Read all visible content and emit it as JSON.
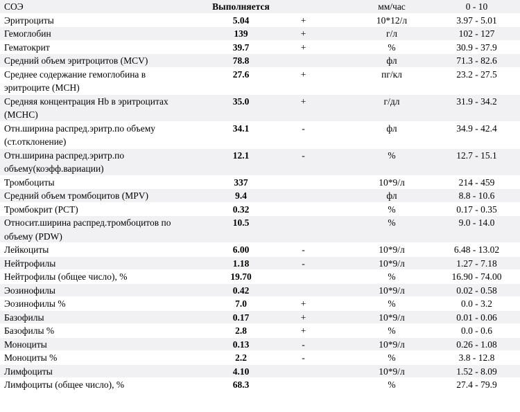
{
  "header": {
    "name": "СОЭ",
    "value": "Выполняется",
    "flag": "",
    "unit": "мм/час",
    "ref": "0 - 10"
  },
  "rows": [
    {
      "name": "Эритроциты",
      "value": "5.04",
      "flag": "+",
      "unit": "10*12/л",
      "ref": "3.97 - 5.01"
    },
    {
      "name": "Гемоглобин",
      "value": "139",
      "flag": "+",
      "unit": "г/л",
      "ref": "102 - 127"
    },
    {
      "name": "Гематокрит",
      "value": "39.7",
      "flag": "+",
      "unit": "%",
      "ref": "30.9 - 37.9"
    },
    {
      "name": "Средний объем эритроцитов (MCV)",
      "value": "78.8",
      "flag": "",
      "unit": "фл",
      "ref": "71.3 - 82.6"
    },
    {
      "name": "Среднее содержание гемоглобина в эритроците (MCH)",
      "value": "27.6",
      "flag": "+",
      "unit": "пг/кл",
      "ref": "23.2 - 27.5"
    },
    {
      "name": "Средняя концентрация Hb в эритроцитах (MCHC)",
      "value": "35.0",
      "flag": "+",
      "unit": "г/дл",
      "ref": "31.9 - 34.2"
    },
    {
      "name": "Отн.ширина распред.эритр.по объему (ст.отклонение)",
      "value": "34.1",
      "flag": "-",
      "unit": "фл",
      "ref": "34.9 - 42.4"
    },
    {
      "name": "Отн.ширина распред.эритр.по объему(коэфф.вариации)",
      "value": "12.1",
      "flag": "-",
      "unit": "%",
      "ref": "12.7 - 15.1"
    },
    {
      "name": "Тромбоциты",
      "value": "337",
      "flag": "",
      "unit": "10*9/л",
      "ref": "214 - 459"
    },
    {
      "name": "Средний объем тромбоцитов (MPV)",
      "value": "9.4",
      "flag": "",
      "unit": "фл",
      "ref": "8.8 - 10.6"
    },
    {
      "name": "Тромбокрит (PCT)",
      "value": "0.32",
      "flag": "",
      "unit": "%",
      "ref": "0.17 - 0.35"
    },
    {
      "name": "Относит.ширина распред.тромбоцитов по объему (PDW)",
      "value": "10.5",
      "flag": "",
      "unit": "%",
      "ref": "9.0 - 14.0"
    },
    {
      "name": "Лейкоциты",
      "value": "6.00",
      "flag": "-",
      "unit": "10*9/л",
      "ref": "6.48 - 13.02"
    },
    {
      "name": "Нейтрофилы",
      "value": "1.18",
      "flag": "-",
      "unit": "10*9/л",
      "ref": "1.27 - 7.18"
    },
    {
      "name": "Нейтрофилы (общее число), %",
      "value": "19.70",
      "flag": "",
      "unit": "%",
      "ref": "16.90 - 74.00"
    },
    {
      "name": "Эозинофилы",
      "value": "0.42",
      "flag": "",
      "unit": "10*9/л",
      "ref": "0.02 - 0.58"
    },
    {
      "name": "Эозинофилы %",
      "value": "7.0",
      "flag": "+",
      "unit": "%",
      "ref": "0.0 - 3.2"
    },
    {
      "name": "Базофилы",
      "value": "0.17",
      "flag": "+",
      "unit": "10*9/л",
      "ref": "0.01 - 0.06"
    },
    {
      "name": "Базофилы %",
      "value": "2.8",
      "flag": "+",
      "unit": "%",
      "ref": "0.0 - 0.6"
    },
    {
      "name": "Моноциты",
      "value": "0.13",
      "flag": "-",
      "unit": "10*9/л",
      "ref": "0.26 - 1.08"
    },
    {
      "name": "Моноциты %",
      "value": "2.2",
      "flag": "-",
      "unit": "%",
      "ref": "3.8 - 12.8"
    },
    {
      "name": "Лимфоциты",
      "value": "4.10",
      "flag": "",
      "unit": "10*9/л",
      "ref": "1.52 - 8.09"
    },
    {
      "name": "Лимфоциты (общее число), %",
      "value": "68.3",
      "flag": "",
      "unit": "%",
      "ref": "27.4 - 79.9"
    }
  ]
}
